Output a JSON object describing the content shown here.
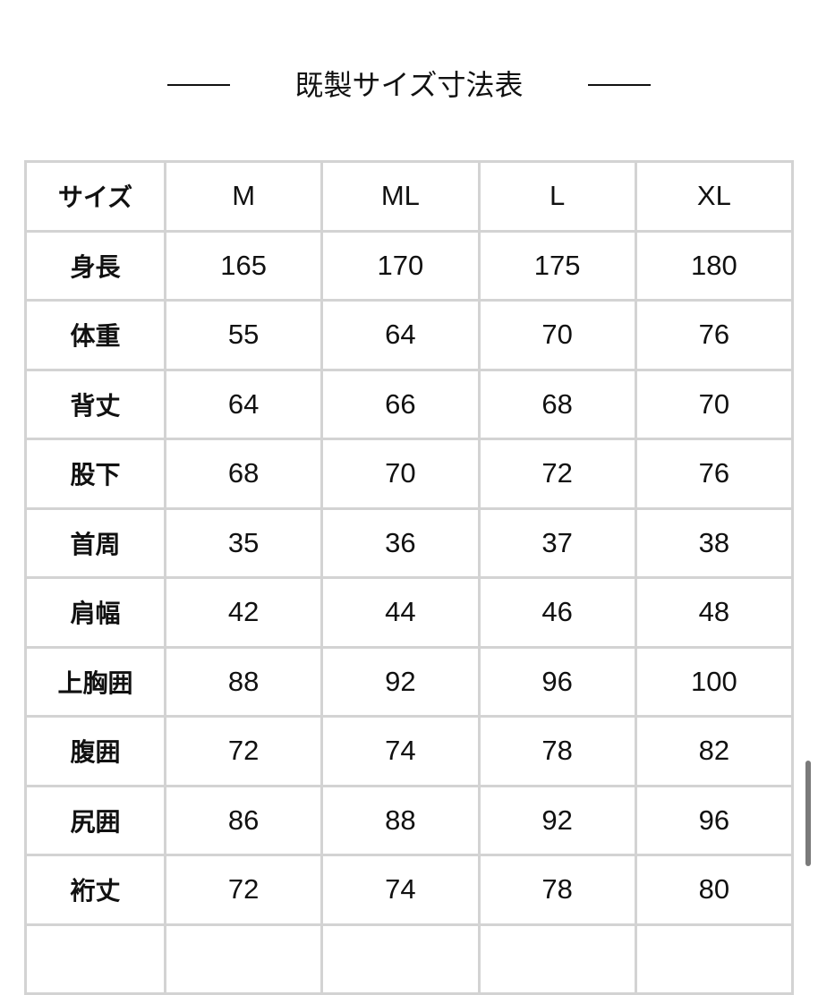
{
  "title": "既製サイズ寸法表",
  "table": {
    "header": [
      "サイズ",
      "M",
      "ML",
      "L",
      "XL"
    ],
    "rows": [
      [
        "身長",
        "165",
        "170",
        "175",
        "180"
      ],
      [
        "体重",
        "55",
        "64",
        "70",
        "76"
      ],
      [
        "背丈",
        "64",
        "66",
        "68",
        "70"
      ],
      [
        "股下",
        "68",
        "70",
        "72",
        "76"
      ],
      [
        "首周",
        "35",
        "36",
        "37",
        "38"
      ],
      [
        "肩幅",
        "42",
        "44",
        "46",
        "48"
      ],
      [
        "上胸囲",
        "88",
        "92",
        "96",
        "100"
      ],
      [
        "腹囲",
        "72",
        "74",
        "78",
        "82"
      ],
      [
        "尻囲",
        "86",
        "88",
        "92",
        "96"
      ],
      [
        "裄丈",
        "72",
        "74",
        "78",
        "80"
      ],
      [
        "",
        "",
        "",
        "",
        ""
      ]
    ]
  },
  "colors": {
    "border": "#d3d3d3",
    "text": "#111111",
    "scrollbar": "#7a7a7a"
  }
}
